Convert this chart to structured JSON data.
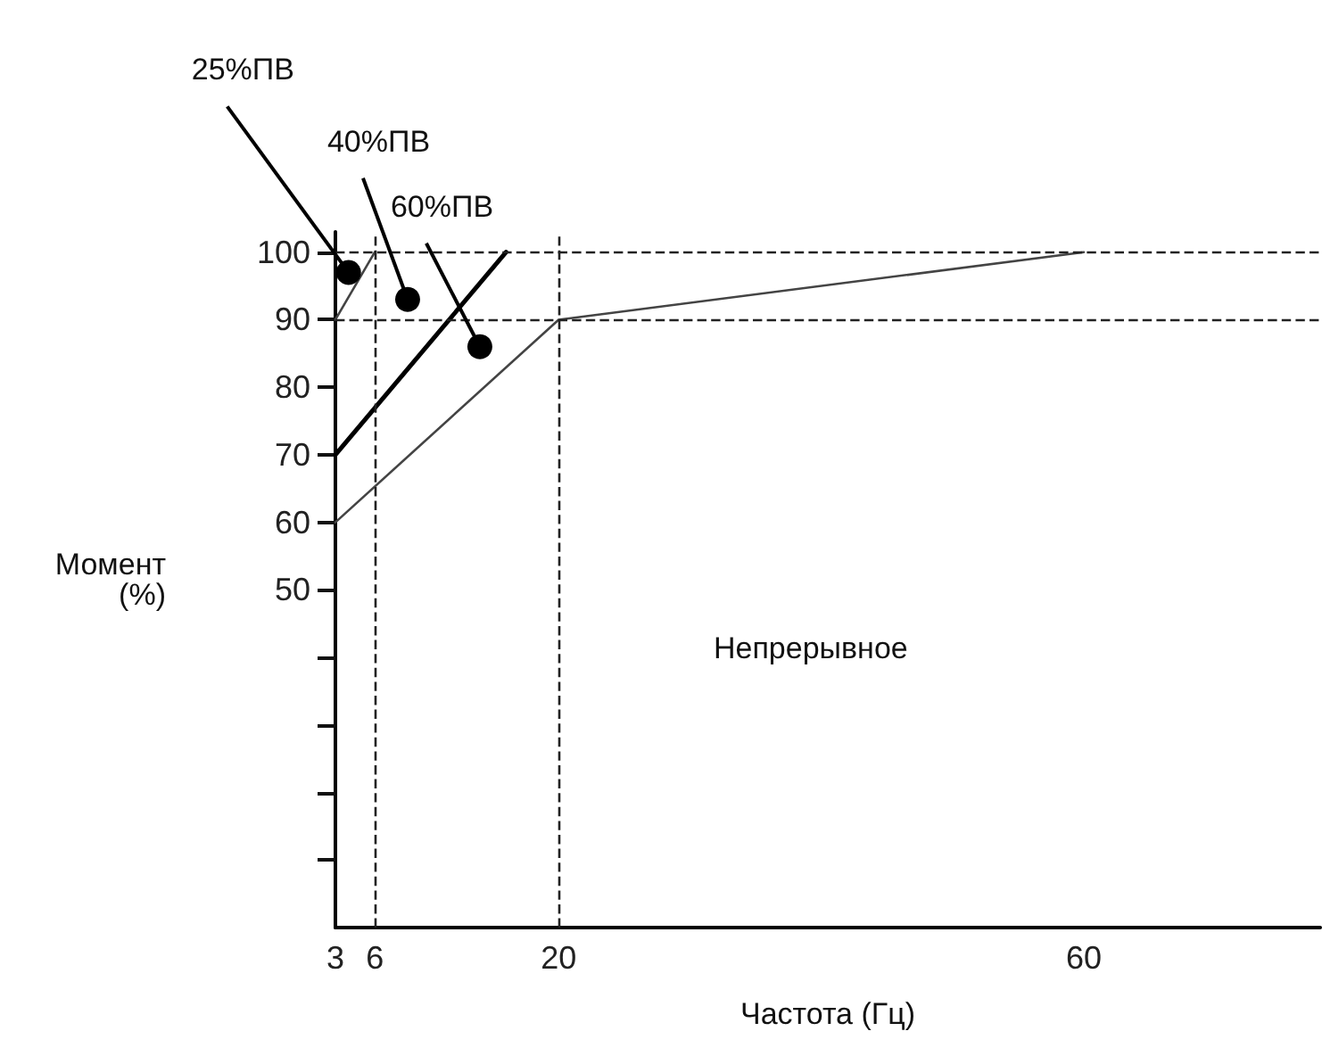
{
  "chart_data": {
    "type": "line",
    "xlabel": "Частота (Гц)",
    "ylabel": "Момент\n(%)",
    "xlim": [
      3,
      78
    ],
    "xticks": [
      3,
      6,
      20,
      60
    ],
    "ylim": [
      0,
      103
    ],
    "yticks": [
      {
        "value": 10,
        "label": null
      },
      {
        "value": 20,
        "label": null
      },
      {
        "value": 30,
        "label": null
      },
      {
        "value": 40,
        "label": null
      },
      50,
      60,
      70,
      80,
      90,
      100
    ],
    "series": [
      {
        "x": [
          3,
          20,
          60
        ],
        "values": [
          60,
          90,
          100
        ],
        "color": "#444444"
      },
      {
        "x": [
          3,
          16
        ],
        "values": [
          70,
          100
        ],
        "color": "#000000"
      },
      {
        "x": [
          3,
          6
        ],
        "values": [
          90,
          100
        ],
        "color": "#444444"
      }
    ],
    "ref_lines": [
      {
        "axis": "y",
        "value": 100,
        "line_style": "dashed",
        "color": "#222222"
      },
      {
        "axis": "y",
        "value": 90,
        "line_style": "dashed",
        "color": "#222222"
      },
      {
        "axis": "x",
        "value": 6,
        "line_style": "dashed",
        "color": "#222222"
      },
      {
        "axis": "x",
        "value": 20,
        "line_style": "dashed",
        "color": "#222222"
      }
    ],
    "annotations": [
      {
        "text": "25%ПВ",
        "x": 4,
        "y": 97
      },
      {
        "text": "40%ПВ",
        "x": 8.5,
        "y": 93
      },
      {
        "text": "60%ПВ",
        "x": 14,
        "y": 86
      },
      "Непрерывное"
    ],
    "grid": false,
    "marker": "none",
    "line_style": "solid"
  }
}
